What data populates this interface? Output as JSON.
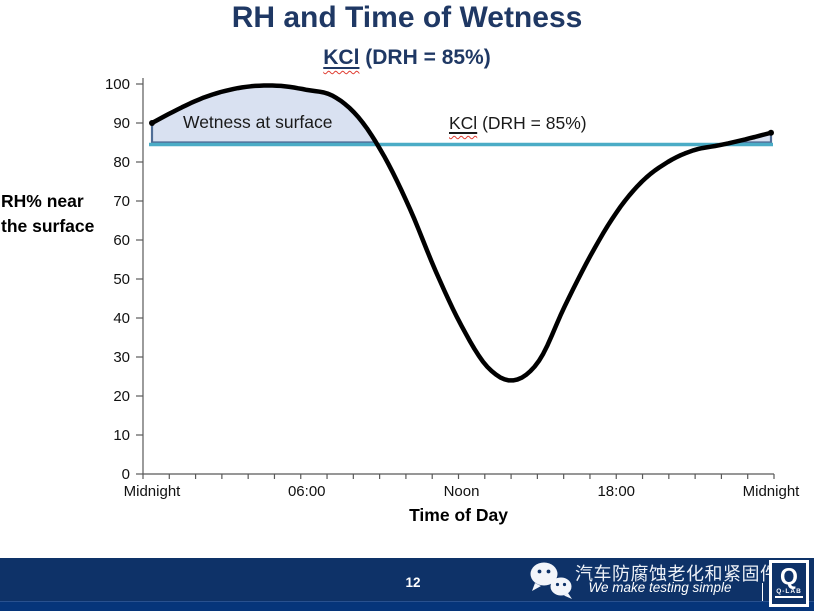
{
  "slide": {
    "title": "RH and Time of Wetness",
    "subtitle": {
      "salt": "KCl",
      "rest": " (DRH = 85%)"
    }
  },
  "chart_data": {
    "type": "line",
    "title": "RH and Time of Wetness",
    "subtitle": "KCl (DRH = 85%)",
    "xlabel": "Time of Day",
    "ylabel": "RH% near the surface",
    "ylabel_lines": [
      "RH% near",
      "the surface"
    ],
    "ylim": [
      0,
      100
    ],
    "grid": false,
    "legend": "none",
    "y_ticks": [
      0,
      10,
      20,
      30,
      40,
      50,
      60,
      70,
      80,
      90,
      100
    ],
    "x_hours": [
      0,
      1,
      2,
      3,
      4,
      5,
      6,
      7,
      8,
      9,
      10,
      11,
      12,
      13,
      14,
      15,
      16,
      17,
      18,
      19,
      20,
      21,
      22,
      23,
      24
    ],
    "x_ticks": [
      {
        "hour": 0,
        "label": "Midnight"
      },
      {
        "hour": 6,
        "label": "06:00"
      },
      {
        "hour": 12,
        "label": "Noon"
      },
      {
        "hour": 18,
        "label": "18:00"
      },
      {
        "hour": 24,
        "label": "Midnight"
      }
    ],
    "series": [
      {
        "name": "RH% near the surface",
        "type": "smooth-line",
        "values": [
          90,
          93.5,
          96.5,
          98.5,
          99.5,
          99.5,
          98.5,
          97,
          91.5,
          81.5,
          68,
          52,
          38,
          27.5,
          24,
          29,
          43,
          56,
          67,
          75,
          80,
          83,
          84.3,
          85.8,
          87.5
        ]
      },
      {
        "name": "KCl (DRH = 85%)",
        "type": "threshold-line",
        "constant": 85
      }
    ],
    "shaded_region": {
      "label": "Wetness at surface",
      "condition": "RH >= 85%"
    },
    "annotations": {
      "wetness": "Wetness at surface",
      "threshold_salt": "KCl",
      "threshold_rest": " (DRH = 85%)"
    },
    "colors": {
      "title_navy": "#1F3864",
      "curve": "#000000",
      "threshold": "#4BACC6",
      "area_fill": "#D9E1F1",
      "area_border": "#4F6D96",
      "axis": "#595959",
      "spellcheck_red": "#E03C31"
    }
  },
  "footer": {
    "page_number": "12",
    "brand_cn": "汽车防腐蚀老化和紧固件",
    "tagline": "We make testing simple",
    "logo": {
      "q": "Q",
      "name": "Q-LAB"
    },
    "bar_color": "#0E3268"
  }
}
